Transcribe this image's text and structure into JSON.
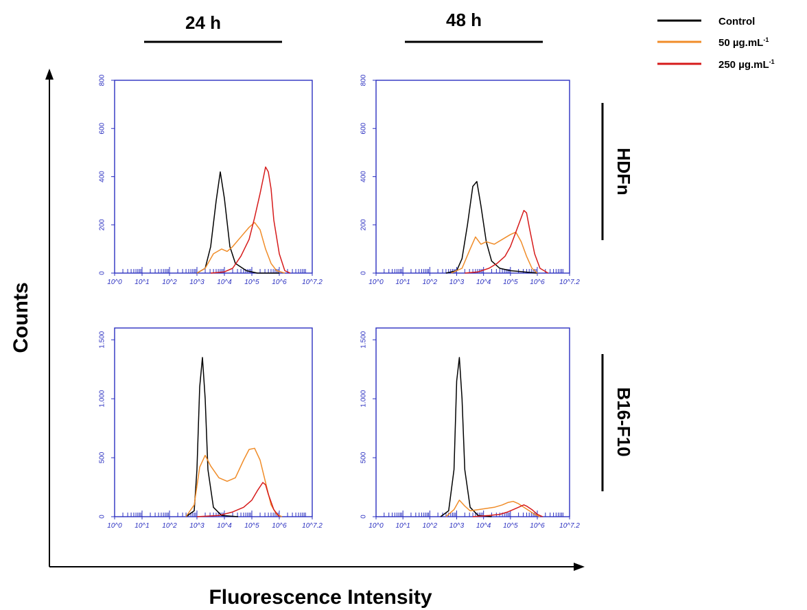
{
  "figure": {
    "col_headers": [
      "24 h",
      "48 h"
    ],
    "row_headers": [
      "HDFn",
      "B16-F10"
    ],
    "y_axis_title": "Counts",
    "x_axis_title": "Fluorescence Intensity"
  },
  "legend": [
    {
      "name": "Control",
      "color": "#000000"
    },
    {
      "name": "50 µg.mL",
      "sup": "-1",
      "color": "#f08c28"
    },
    {
      "name": "250 µg.mL",
      "sup": "-1",
      "color": "#d61a1a"
    }
  ],
  "colors": {
    "axis": "#2a2fc0",
    "control": "#000000",
    "low": "#f08c28",
    "high": "#d61a1a"
  },
  "chart_data": [
    {
      "type": "line",
      "panel": "HDFn 24 h",
      "xlim": [
        0,
        7.2
      ],
      "ylim": [
        0,
        800
      ],
      "y_ticks": [
        0,
        200,
        400,
        600,
        800
      ],
      "y_tick_labels": [
        "0",
        "200",
        "400",
        "600",
        "800"
      ],
      "x_tick_labels": [
        "10^0",
        "10^1",
        "10^2",
        "10^3",
        "10^4",
        "10^5",
        "10^6",
        "10^7.2"
      ],
      "series": [
        {
          "name": "Control",
          "x": [
            3.0,
            3.3,
            3.5,
            3.7,
            3.85,
            4.0,
            4.2,
            4.4,
            4.8,
            5.2,
            6.0
          ],
          "y": [
            0,
            20,
            110,
            300,
            420,
            310,
            110,
            40,
            10,
            0,
            0
          ]
        },
        {
          "name": "50 µg.mL-1",
          "x": [
            3.0,
            3.3,
            3.6,
            3.9,
            4.1,
            4.3,
            4.6,
            4.9,
            5.1,
            5.3,
            5.5,
            5.7,
            5.9,
            6.2
          ],
          "y": [
            0,
            20,
            80,
            100,
            90,
            110,
            150,
            190,
            210,
            180,
            100,
            40,
            10,
            0
          ]
        },
        {
          "name": "250 µg.mL-1",
          "x": [
            3.5,
            4.0,
            4.3,
            4.6,
            4.9,
            5.1,
            5.3,
            5.5,
            5.6,
            5.7,
            5.8,
            6.0,
            6.2,
            6.4
          ],
          "y": [
            0,
            5,
            20,
            70,
            140,
            230,
            330,
            440,
            420,
            350,
            220,
            80,
            10,
            0
          ]
        }
      ]
    },
    {
      "type": "line",
      "panel": "HDFn 48 h",
      "xlim": [
        0,
        7.2
      ],
      "ylim": [
        0,
        800
      ],
      "y_ticks": [
        0,
        200,
        400,
        600,
        800
      ],
      "y_tick_labels": [
        "0",
        "200",
        "400",
        "600",
        "800"
      ],
      "x_tick_labels": [
        "10^0",
        "10^1",
        "10^2",
        "10^3",
        "10^4",
        "10^5",
        "10^6",
        "10^7.2"
      ],
      "series": [
        {
          "name": "Control",
          "x": [
            2.6,
            3.0,
            3.2,
            3.4,
            3.6,
            3.75,
            3.9,
            4.1,
            4.3,
            4.6,
            5.0,
            5.5,
            6.0
          ],
          "y": [
            0,
            10,
            60,
            200,
            360,
            380,
            280,
            130,
            50,
            20,
            10,
            5,
            0
          ]
        },
        {
          "name": "50 µg.mL-1",
          "x": [
            2.8,
            3.2,
            3.5,
            3.7,
            3.9,
            4.1,
            4.4,
            4.7,
            5.0,
            5.2,
            5.4,
            5.6,
            5.8,
            6.0
          ],
          "y": [
            0,
            20,
            100,
            150,
            120,
            130,
            120,
            140,
            160,
            170,
            130,
            70,
            20,
            0
          ]
        },
        {
          "name": "250 µg.mL-1",
          "x": [
            3.3,
            3.8,
            4.2,
            4.5,
            4.8,
            5.0,
            5.2,
            5.4,
            5.5,
            5.6,
            5.7,
            5.9,
            6.1,
            6.4
          ],
          "y": [
            0,
            5,
            20,
            40,
            70,
            110,
            170,
            230,
            260,
            250,
            190,
            80,
            20,
            0
          ]
        }
      ]
    },
    {
      "type": "line",
      "panel": "B16-F10 24 h",
      "xlim": [
        0,
        7.2
      ],
      "ylim": [
        0,
        1600
      ],
      "y_ticks": [
        0,
        500,
        1000,
        1500
      ],
      "y_tick_labels": [
        "0",
        "500",
        "1.000",
        "1.500"
      ],
      "x_tick_labels": [
        "10^0",
        "10^1",
        "10^2",
        "10^3",
        "10^4",
        "10^5",
        "10^6",
        "10^7.2"
      ],
      "series": [
        {
          "name": "Control",
          "x": [
            2.6,
            2.9,
            3.0,
            3.1,
            3.2,
            3.3,
            3.4,
            3.6,
            3.9,
            4.5
          ],
          "y": [
            0,
            50,
            400,
            1100,
            1350,
            1000,
            400,
            80,
            10,
            0
          ]
        },
        {
          "name": "50 µg.mL-1",
          "x": [
            2.6,
            2.9,
            3.1,
            3.3,
            3.5,
            3.8,
            4.1,
            4.4,
            4.7,
            4.9,
            5.1,
            5.3,
            5.5,
            5.7,
            5.9,
            6.1
          ],
          "y": [
            0,
            100,
            420,
            520,
            430,
            330,
            300,
            330,
            480,
            570,
            580,
            480,
            290,
            100,
            20,
            0
          ]
        },
        {
          "name": "250 µg.mL-1",
          "x": [
            3.0,
            3.8,
            4.3,
            4.7,
            5.0,
            5.2,
            5.4,
            5.5,
            5.6,
            5.8,
            6.0
          ],
          "y": [
            0,
            10,
            40,
            80,
            140,
            220,
            290,
            270,
            190,
            60,
            0
          ]
        }
      ]
    },
    {
      "type": "line",
      "panel": "B16-F10 48 h",
      "xlim": [
        0,
        7.2
      ],
      "ylim": [
        0,
        1600
      ],
      "y_ticks": [
        0,
        500,
        1000,
        1500
      ],
      "y_tick_labels": [
        "0",
        "500",
        "1.000",
        "1.500"
      ],
      "x_tick_labels": [
        "10^0",
        "10^1",
        "10^2",
        "10^3",
        "10^4",
        "10^5",
        "10^6",
        "10^7.2"
      ],
      "series": [
        {
          "name": "Control",
          "x": [
            2.4,
            2.7,
            2.9,
            3.0,
            3.1,
            3.2,
            3.3,
            3.5,
            3.8,
            4.3
          ],
          "y": [
            0,
            50,
            400,
            1150,
            1350,
            1000,
            400,
            80,
            10,
            0
          ]
        },
        {
          "name": "50 µg.mL-1",
          "x": [
            2.6,
            2.9,
            3.1,
            3.3,
            3.5,
            3.8,
            4.1,
            4.4,
            4.7,
            4.9,
            5.1,
            5.3,
            5.5,
            5.7,
            5.9,
            6.1
          ],
          "y": [
            0,
            60,
            140,
            90,
            50,
            60,
            70,
            80,
            100,
            120,
            130,
            110,
            80,
            50,
            20,
            0
          ]
        },
        {
          "name": "250 µg.mL-1",
          "x": [
            3.6,
            4.2,
            4.6,
            4.9,
            5.1,
            5.3,
            5.5,
            5.6,
            5.8,
            6.0,
            6.2
          ],
          "y": [
            0,
            10,
            20,
            40,
            60,
            80,
            100,
            90,
            60,
            20,
            0
          ]
        }
      ]
    }
  ]
}
